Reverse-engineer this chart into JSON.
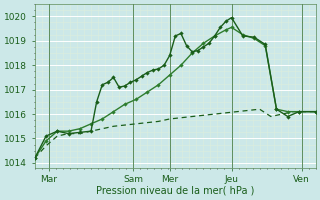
{
  "xlabel": "Pression niveau de la mer( hPa )",
  "background_color": "#cce8e8",
  "grid_color": "#ffffff",
  "grid_minor_color": "#ddeedd",
  "xlim": [
    0,
    100
  ],
  "ylim": [
    1013.8,
    1020.5
  ],
  "yticks": [
    1014,
    1015,
    1016,
    1017,
    1018,
    1019,
    1020
  ],
  "xtick_positions": [
    5,
    35,
    48,
    70,
    95
  ],
  "xtick_labels": [
    "Mar",
    "Sam",
    "Mer",
    "Jeu",
    "Ven"
  ],
  "vline_positions": [
    5,
    35,
    48,
    70,
    95
  ],
  "line_color_dark": "#1a5e1a",
  "line_color_mid": "#2e7d2e",
  "trend_x": [
    0,
    4,
    8,
    12,
    16,
    20,
    24,
    28,
    32,
    36,
    40,
    44,
    48,
    52,
    56,
    60,
    64,
    68,
    72,
    76,
    80,
    84,
    88,
    92,
    96,
    100
  ],
  "trend_y": [
    1014.2,
    1014.7,
    1015.1,
    1015.2,
    1015.2,
    1015.3,
    1015.4,
    1015.5,
    1015.55,
    1015.6,
    1015.65,
    1015.7,
    1015.8,
    1015.85,
    1015.9,
    1015.95,
    1016.0,
    1016.05,
    1016.1,
    1016.15,
    1016.2,
    1015.9,
    1016.0,
    1016.1,
    1016.1,
    1016.1
  ],
  "smooth_x": [
    0,
    4,
    8,
    12,
    16,
    20,
    24,
    28,
    32,
    36,
    40,
    44,
    48,
    52,
    56,
    60,
    64,
    68,
    70,
    74,
    78,
    82,
    86,
    90,
    94,
    100
  ],
  "smooth_y": [
    1014.2,
    1014.9,
    1015.3,
    1015.3,
    1015.4,
    1015.6,
    1015.8,
    1016.1,
    1016.4,
    1016.6,
    1016.9,
    1017.2,
    1017.6,
    1018.0,
    1018.5,
    1018.9,
    1019.2,
    1019.45,
    1019.55,
    1019.25,
    1019.1,
    1018.8,
    1016.2,
    1016.1,
    1016.1,
    1016.1
  ],
  "jagged_x": [
    0,
    4,
    8,
    12,
    16,
    20,
    22,
    24,
    26,
    28,
    30,
    32,
    34,
    36,
    38,
    40,
    42,
    44,
    46,
    48,
    50,
    52,
    54,
    56,
    58,
    60,
    62,
    64,
    66,
    68,
    70,
    74,
    78,
    82,
    86,
    90,
    94,
    100
  ],
  "jagged_y": [
    1014.2,
    1015.1,
    1015.3,
    1015.2,
    1015.25,
    1015.3,
    1016.5,
    1017.2,
    1017.3,
    1017.5,
    1017.1,
    1017.15,
    1017.3,
    1017.4,
    1017.55,
    1017.7,
    1017.8,
    1017.85,
    1018.0,
    1018.4,
    1019.2,
    1019.3,
    1018.8,
    1018.55,
    1018.6,
    1018.75,
    1018.9,
    1019.2,
    1019.55,
    1019.8,
    1019.95,
    1019.2,
    1019.15,
    1018.85,
    1016.2,
    1015.9,
    1016.1,
    1016.1
  ]
}
